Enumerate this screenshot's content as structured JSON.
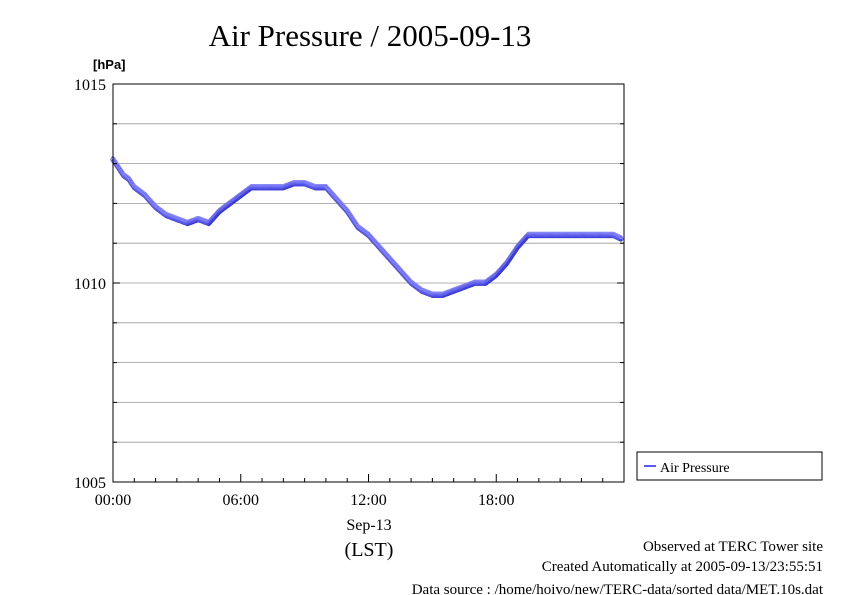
{
  "chart_data": {
    "type": "scatter",
    "title": "Air Pressure / 2005-09-13",
    "ylabel": "[hPa]",
    "ylim": [
      1005,
      1015
    ],
    "yticks": [
      1005,
      1010,
      1015
    ],
    "ytick_labels": [
      "1005",
      "1010",
      "1015"
    ],
    "y_grid_step": 1,
    "xlim_hours": [
      0,
      24
    ],
    "xticks_hours": [
      0,
      6,
      12,
      18
    ],
    "xtick_labels": [
      "00:00",
      "06:00",
      "12:00",
      "18:00"
    ],
    "x_date_label": "Sep-13",
    "x_unit_label": "(LST)",
    "grid": true,
    "legend_position": "right",
    "series": [
      {
        "name": "Air Pressure",
        "color": "#5a5aee",
        "hours": [
          0.0,
          0.25,
          0.5,
          0.75,
          1.0,
          1.5,
          2.0,
          2.5,
          3.0,
          3.5,
          4.0,
          4.5,
          5.0,
          5.5,
          6.0,
          6.5,
          7.0,
          7.5,
          8.0,
          8.5,
          9.0,
          9.5,
          10.0,
          10.5,
          11.0,
          11.5,
          12.0,
          12.5,
          13.0,
          13.5,
          14.0,
          14.5,
          15.0,
          15.5,
          16.0,
          16.5,
          17.0,
          17.5,
          18.0,
          18.5,
          19.0,
          19.5,
          20.0,
          20.5,
          21.0,
          21.5,
          22.0,
          22.5,
          23.0,
          23.5,
          23.9
        ],
        "values": [
          1013.1,
          1012.9,
          1012.7,
          1012.6,
          1012.4,
          1012.2,
          1011.9,
          1011.7,
          1011.6,
          1011.5,
          1011.6,
          1011.5,
          1011.8,
          1012.0,
          1012.2,
          1012.4,
          1012.4,
          1012.4,
          1012.4,
          1012.5,
          1012.5,
          1012.4,
          1012.4,
          1012.1,
          1011.8,
          1011.4,
          1011.2,
          1010.9,
          1010.6,
          1010.3,
          1010.0,
          1009.8,
          1009.7,
          1009.7,
          1009.8,
          1009.9,
          1010.0,
          1010.0,
          1010.2,
          1010.5,
          1010.9,
          1011.2,
          1011.2,
          1011.2,
          1011.2,
          1011.2,
          1011.2,
          1011.2,
          1011.2,
          1011.2,
          1011.1
        ]
      }
    ]
  },
  "footer": {
    "site": "Observed at TERC Tower site",
    "created": "Created Automatically at 2005-09-13/23:55:51",
    "source": "Data source : /home/hoivo/new/TERC-data/sorted  data/MET.10s.dat"
  }
}
